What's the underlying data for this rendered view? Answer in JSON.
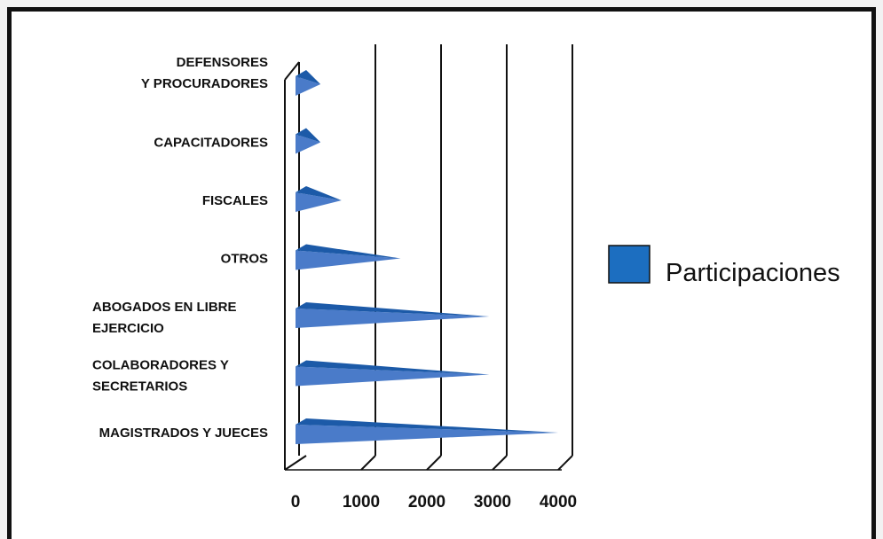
{
  "chart_data": {
    "type": "bar",
    "orientation": "horizontal",
    "categories": [
      "DEFENSORES Y PROCURADORES",
      "CAPACITADORES",
      "FISCALES",
      "OTROS",
      "ABOGADOS EN LIBRE EJERCICIO",
      "COLABORADORES Y SECRETARIOS",
      "MAGISTRADOS Y JUECES"
    ],
    "category_label_lines": [
      [
        "DEFENSORES",
        "Y PROCURADORES"
      ],
      [
        "CAPACITADORES"
      ],
      [
        "FISCALES"
      ],
      [
        "OTROS"
      ],
      [
        "ABOGADOS EN LIBRE",
        "EJERCICIO"
      ],
      [
        "COLABORADORES Y",
        "SECRETARIOS"
      ],
      [
        "MAGISTRADOS  Y JUECES"
      ]
    ],
    "series": [
      {
        "name": "Participaciones",
        "values": [
          380,
          380,
          700,
          1600,
          2950,
          2950,
          4000
        ]
      }
    ],
    "xlim": [
      0,
      4000
    ],
    "xticks": [
      0,
      1000,
      2000,
      3000,
      4000
    ],
    "xtick_labels": [
      "0",
      "1000",
      "2000",
      "3000",
      "4000"
    ],
    "grid": true,
    "legend_position": "right",
    "title": "",
    "xlabel": "",
    "ylabel": ""
  },
  "colors": {
    "bar_front": "#4a7bc9",
    "bar_top": "#1c5aa8",
    "legend_box": "#1c6ec0",
    "grid": "#111111"
  }
}
